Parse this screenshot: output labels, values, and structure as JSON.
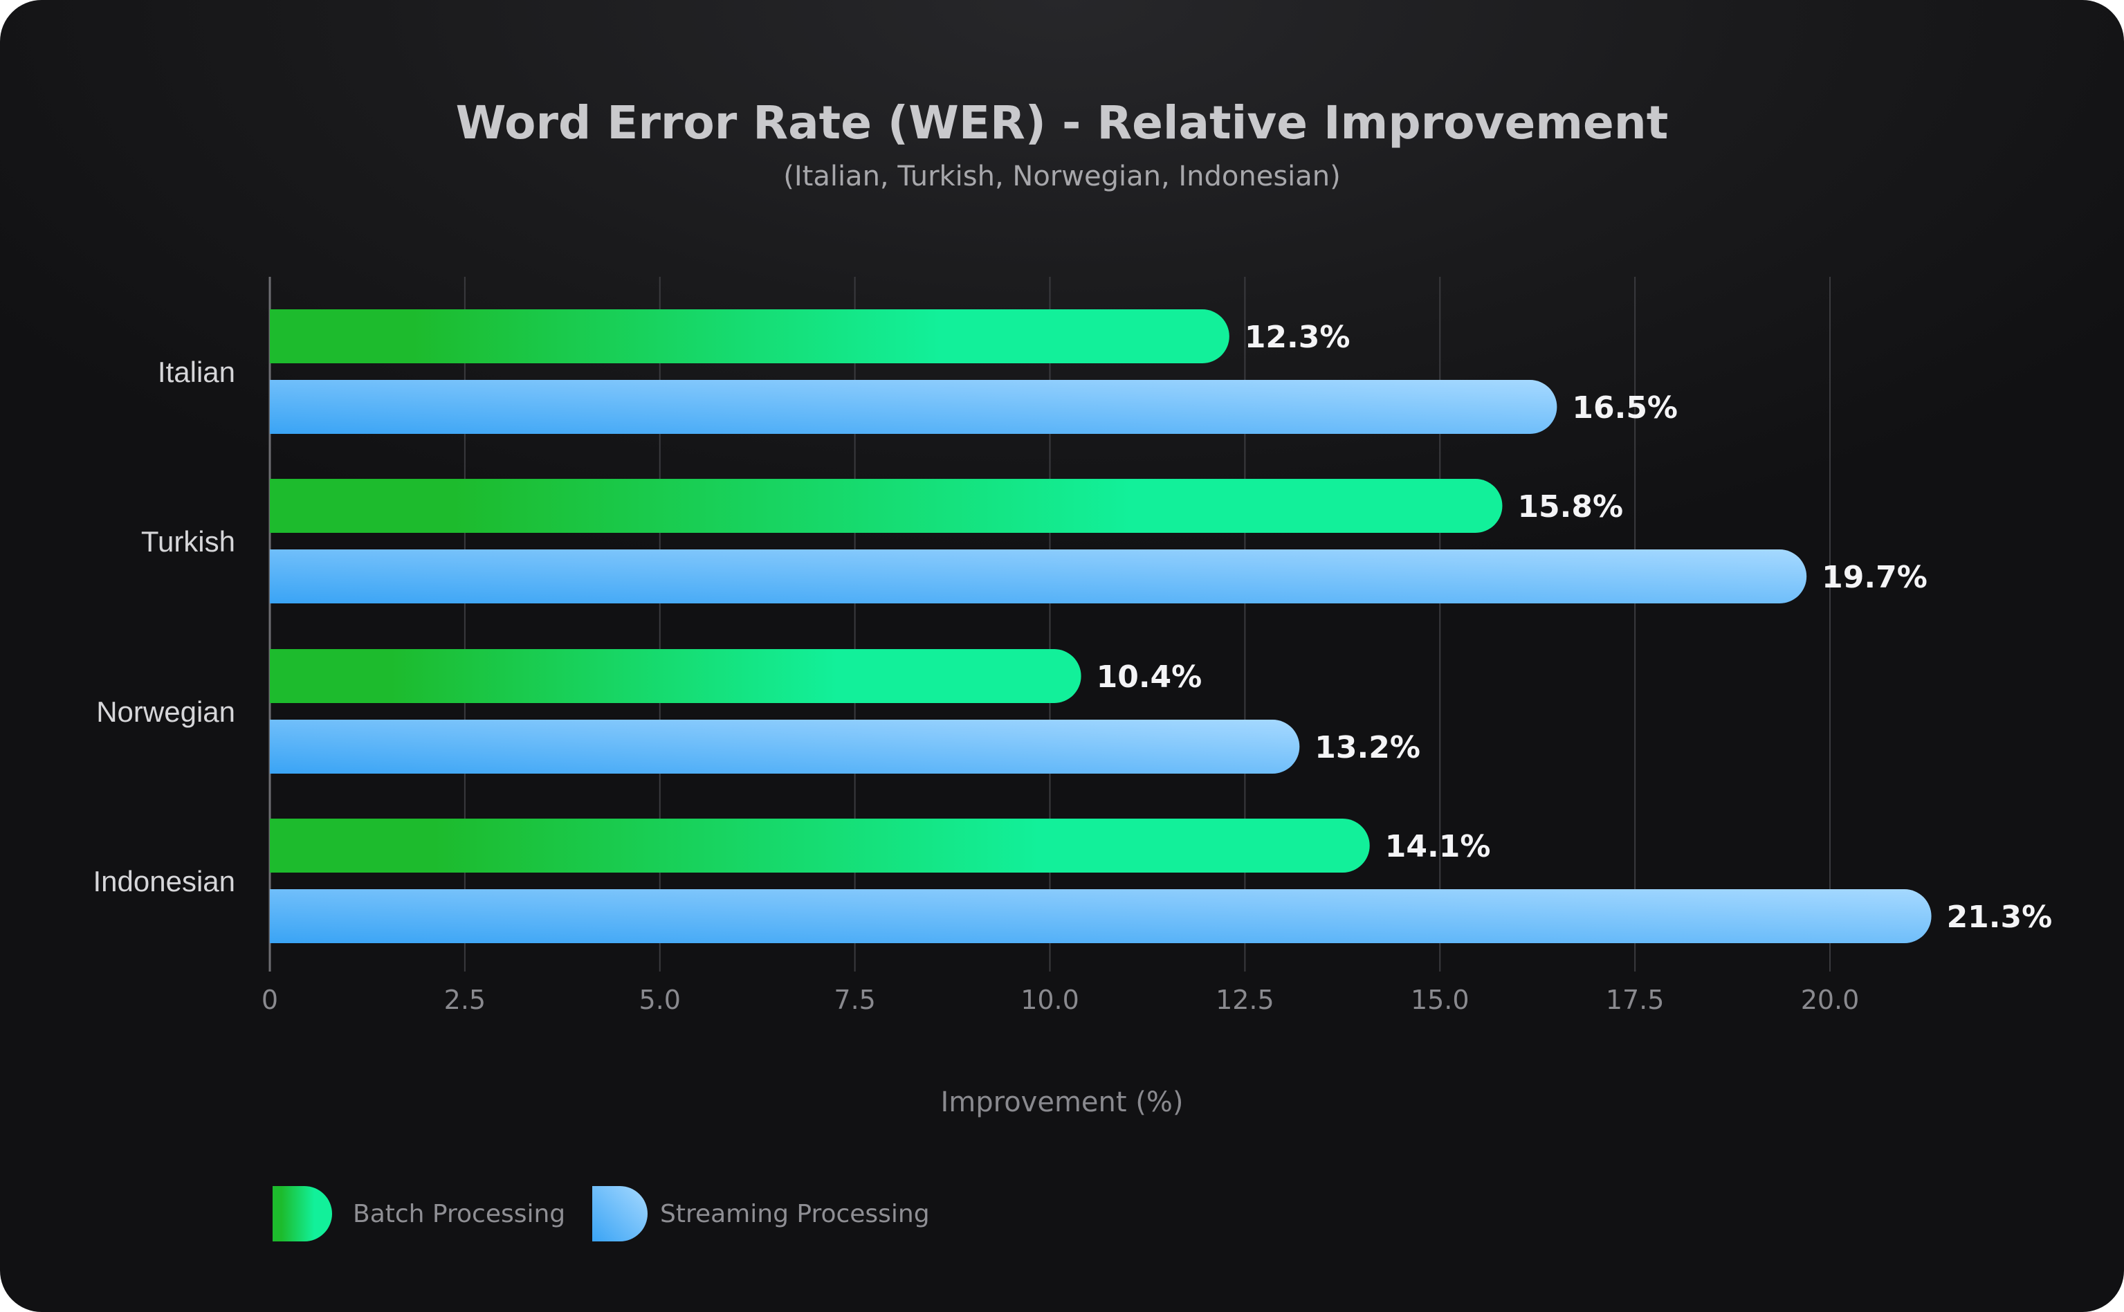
{
  "chart_data": {
    "type": "bar",
    "orientation": "horizontal",
    "title": "Word Error Rate (WER) - Relative Improvement",
    "subtitle": "(Italian, Turkish, Norwegian, Indonesian)",
    "categories": [
      "Italian",
      "Turkish",
      "Norwegian",
      "Indonesian"
    ],
    "series": [
      {
        "name": "Batch Processing",
        "values": [
          12.3,
          15.8,
          10.4,
          14.1
        ],
        "labels": [
          "12.3%",
          "15.8%",
          "10.4%",
          "14.1%"
        ]
      },
      {
        "name": "Streaming Processing",
        "values": [
          16.5,
          19.7,
          13.2,
          21.3
        ],
        "labels": [
          "16.5%",
          "19.7%",
          "13.2%",
          "21.3%"
        ]
      }
    ],
    "xlabel": "Improvement (%)",
    "ylabel": "",
    "xlim": [
      0,
      22.5
    ],
    "xticks": [
      0,
      2.5,
      5,
      7.5,
      10,
      12.5,
      15,
      17.5,
      20
    ],
    "xtick_labels": [
      "0",
      "2.5",
      "5.0",
      "7.5",
      "10.0",
      "12.5",
      "15.0",
      "17.5",
      "20.0"
    ],
    "grid": true,
    "legend_position": "bottom-left"
  },
  "colors": {
    "batch_start": "#1dbb2d",
    "batch_end": "#12f09a",
    "stream_start": "#3aa4f5",
    "stream_end": "#a6d9ff"
  }
}
